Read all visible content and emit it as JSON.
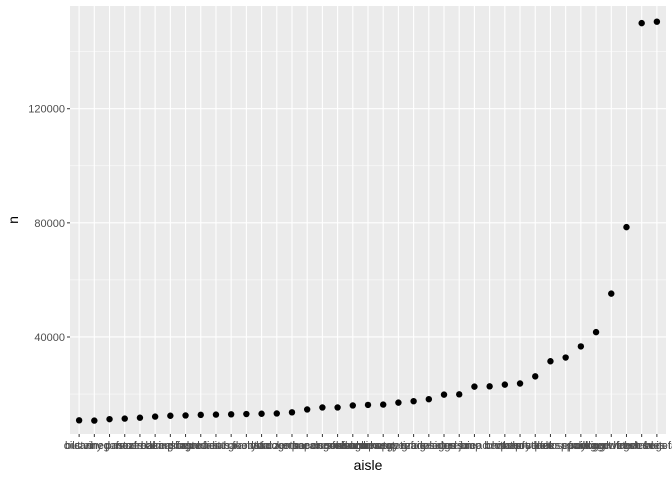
{
  "chart_data": {
    "type": "scatter",
    "xlabel": "aisle",
    "ylabel": "n",
    "x": [
      "butter",
      "oils vinegars",
      "dry pasta",
      "canned meals beans",
      "cereal",
      "frozen breakfast",
      "frozen produce",
      "baking ingredients",
      "spreads",
      "breakfast bakery",
      "asian foods",
      "granola",
      "tea",
      "crackers",
      "frozen meals",
      "hot dogs bacon sausage",
      "paper goods",
      "other creams cheeses",
      "cookies cakes",
      "lunch meat",
      "fresh dips tapenades",
      "frozen appetizers sides",
      "energy granola bars",
      "refrigerated",
      "eggs",
      "cream",
      "bread",
      "juice nectars",
      "soup broth bouquet",
      "chips pretzels",
      "soft drinks",
      "soy lactosefree",
      "water seltzer sparkling water",
      "milk",
      "yogurt",
      "packaged cheese",
      "packaged vegetables fruits",
      "fresh fruits",
      "fresh vegetables"
    ],
    "y": [
      10800,
      10700,
      11200,
      11400,
      11700,
      12100,
      12400,
      12500,
      12700,
      12800,
      12900,
      13000,
      13100,
      13200,
      13600,
      14600,
      15300,
      15300,
      16000,
      16200,
      16300,
      17000,
      17500,
      18200,
      19800,
      19900,
      22600,
      22700,
      23300,
      23700,
      26200,
      31500,
      32800,
      36700,
      41700,
      55200,
      78500,
      150000,
      150500
    ],
    "ylim": [
      6000,
      156000
    ],
    "yticks": [
      40000,
      80000,
      120000
    ],
    "yticklabels": [
      "40000",
      "80000",
      "120000"
    ],
    "grid": true,
    "legend": "none",
    "colors": {
      "panel": "#ebebeb",
      "grid_major": "#ffffff",
      "point": "#000000",
      "tick_text": "#4d4d4d"
    }
  }
}
